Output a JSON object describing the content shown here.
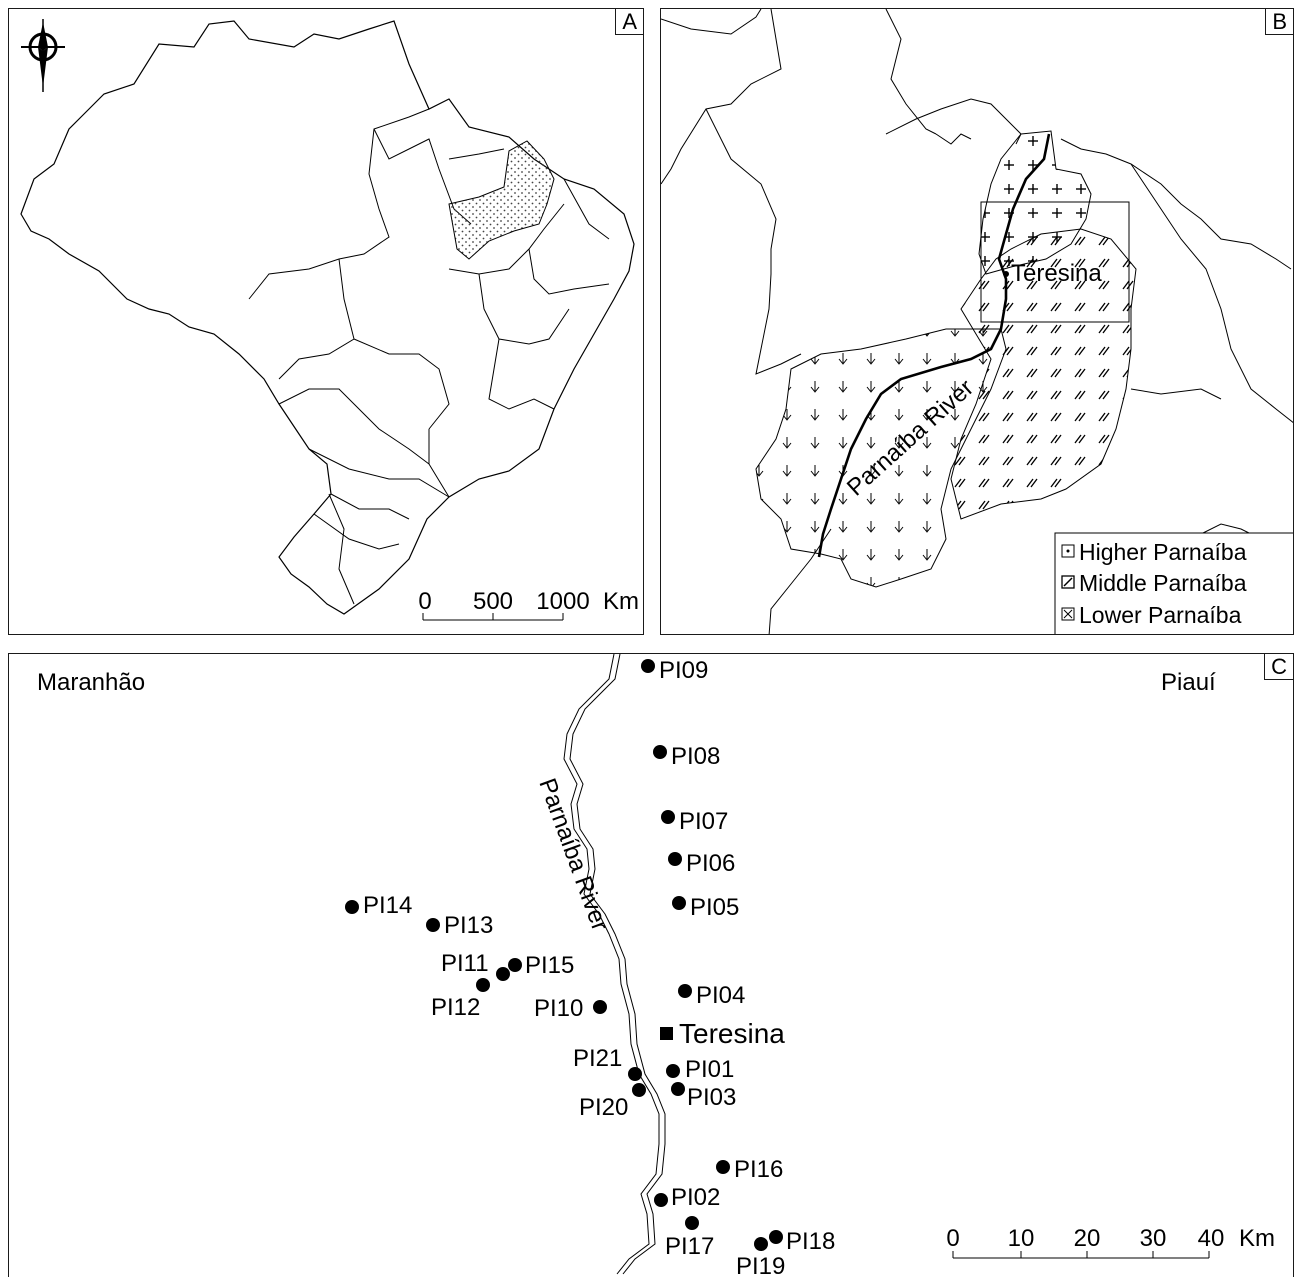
{
  "panel_a": {
    "label": "A",
    "north_arrow_icon": "north-arrow-icon",
    "scale": {
      "ticks": [
        "0",
        "500",
        "1000"
      ],
      "unit": "Km"
    }
  },
  "panel_b": {
    "label": "B",
    "city": "Teresina",
    "river": "Parnaíba River",
    "legend": [
      {
        "label": "Higher Parnaíba",
        "icon": "dot-pattern-swatch"
      },
      {
        "label": "Middle Parnaíba",
        "icon": "hatch-pattern-swatch"
      },
      {
        "label": "Lower Parnaíba",
        "icon": "cross-pattern-swatch"
      }
    ]
  },
  "panel_c": {
    "label": "C",
    "state_left": "Maranhão",
    "state_right": "Piauí",
    "river": "Parnaíba River",
    "city": "Teresina",
    "sites": [
      "PI01",
      "PI02",
      "PI03",
      "PI04",
      "PI05",
      "PI06",
      "PI07",
      "PI08",
      "PI09",
      "PI10",
      "PI11",
      "PI12",
      "PI13",
      "PI14",
      "PI15",
      "PI16",
      "PI17",
      "PI18",
      "PI19",
      "PI20",
      "PI21"
    ],
    "scale": {
      "ticks": [
        "0",
        "10",
        "20",
        "30",
        "40"
      ],
      "unit": "Km"
    }
  }
}
